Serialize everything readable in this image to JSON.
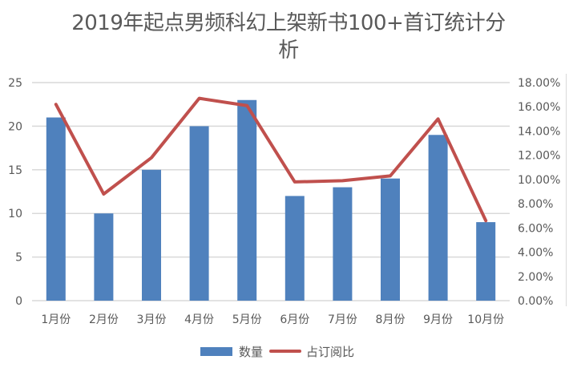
{
  "chart_data": {
    "type": "bar+line",
    "title": "2019年起点男频科幻上架新书100+首订统计分析",
    "title_lines": [
      "2019年起点男频科幻上架新书100+首订统计分",
      "析"
    ],
    "categories": [
      "1月份",
      "2月份",
      "3月份",
      "4月份",
      "5月份",
      "6月份",
      "7月份",
      "8月份",
      "9月份",
      "10月份"
    ],
    "series": [
      {
        "name": "数量",
        "type": "bar",
        "axis": "left",
        "color": "#4f81bd",
        "values": [
          21,
          10,
          15,
          20,
          23,
          12,
          13,
          14,
          19,
          9
        ]
      },
      {
        "name": "占订阅比",
        "type": "line",
        "axis": "right",
        "color": "#c0504d",
        "values": [
          0.162,
          0.088,
          0.118,
          0.167,
          0.161,
          0.098,
          0.099,
          0.103,
          0.15,
          0.066
        ]
      }
    ],
    "left_axis": {
      "min": 0,
      "max": 25,
      "ticks": [
        "0",
        "5",
        "10",
        "15",
        "20",
        "25"
      ]
    },
    "right_axis": {
      "min": 0,
      "max": 0.18,
      "ticks": [
        "0.00%",
        "2.00%",
        "4.00%",
        "6.00%",
        "8.00%",
        "10.00%",
        "12.00%",
        "14.00%",
        "16.00%",
        "18.00%"
      ]
    },
    "xlabel": "",
    "ylabel": "",
    "grid": true,
    "legend_position": "bottom"
  },
  "legend": {
    "bar_label": "数量",
    "line_label": "占订阅比"
  }
}
